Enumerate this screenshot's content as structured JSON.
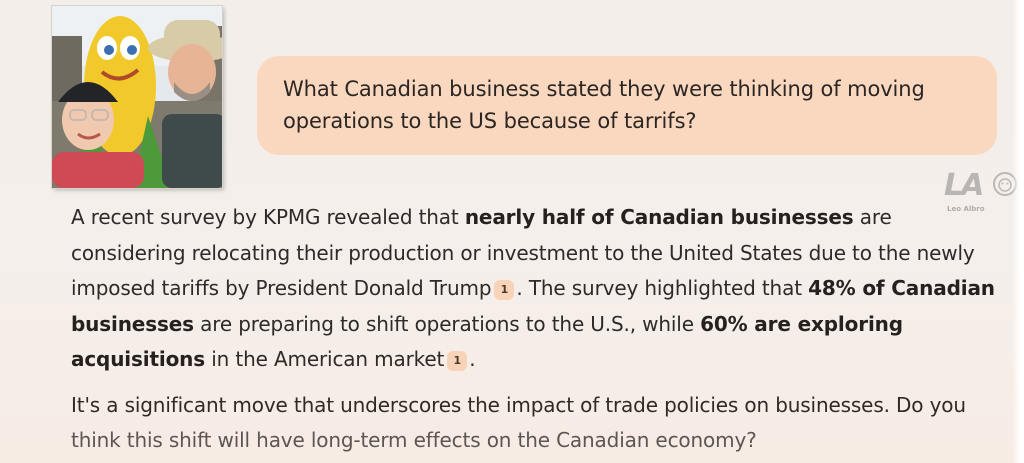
{
  "user_message": {
    "line1": "What Canadian business stated they were thinking of moving",
    "line2": "operations to the US because of tarrifs?"
  },
  "watermark": {
    "logo": "LA",
    "name": "Leo Albro"
  },
  "response": {
    "p1": {
      "t1": "A recent survey by KPMG revealed that ",
      "b1": "nearly half of Canadian businesses",
      "t2": " are considering relocating their production or investment to the United States due to the newly imposed tariffs by President Donald Trump",
      "cite1": "1",
      "t3": ". The survey highlighted that ",
      "b2": "48% of Canadian businesses",
      "t4": " are preparing to shift operations to the U.S., while ",
      "b3": "60% are exploring acquisitions",
      "t5": " in the American market",
      "cite2": "1",
      "t6": "."
    },
    "p2": {
      "t1": "It's a significant move that underscores the impact of trade policies on businesses. Do you",
      "t2": "think this shift will have long-term effects on the Canadian economy?"
    }
  },
  "colors": {
    "bubble": "#f9d8bf",
    "citation_chip": "#f8d3b7",
    "text": "#2f2a27"
  }
}
